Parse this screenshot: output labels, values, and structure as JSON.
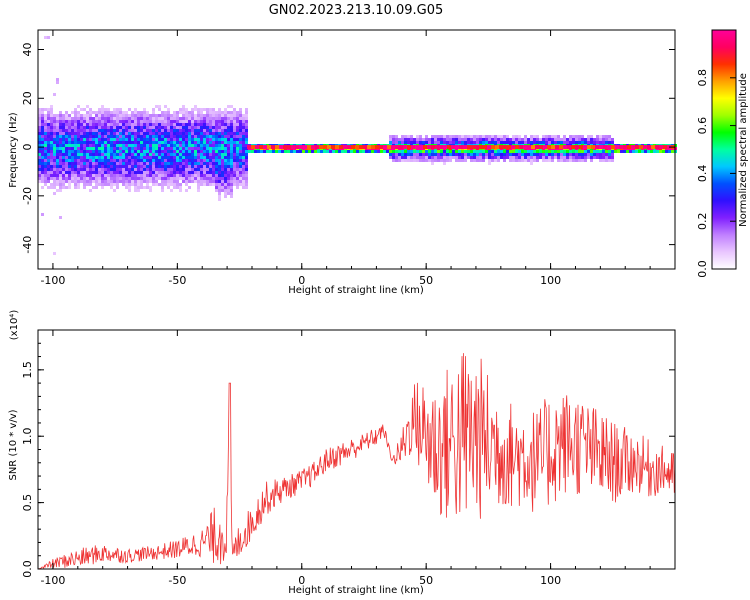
{
  "chart_data": [
    {
      "type": "heatmap",
      "title": "GN02.2023.213.10.09.G05",
      "xlabel": "Height of straight line (km)",
      "ylabel": "Frequency (Hz)",
      "xlim": [
        -106,
        150
      ],
      "ylim": [
        -50,
        48
      ],
      "xticks": [
        -100,
        -50,
        0,
        50,
        100
      ],
      "yticks": [
        -40,
        -20,
        0,
        20,
        40
      ],
      "colorbar": {
        "label": "Normalized spectral amplitude",
        "range": [
          0,
          1
        ],
        "ticks": [
          0.0,
          0.2,
          0.4,
          0.6,
          0.8
        ],
        "tick_labels": [
          "0.0",
          "0.2",
          "0.4",
          "0.6",
          "0.8"
        ],
        "colors": [
          "#ffffff",
          "#e9c6ff",
          "#c080ff",
          "#8020ff",
          "#3010ff",
          "#0050ff",
          "#00c8ff",
          "#00ffa0",
          "#00ff00",
          "#a0ff00",
          "#ffff00",
          "#ffa000",
          "#ff3000",
          "#ff0060",
          "#ff0099"
        ]
      },
      "series": [
        {
          "segments": [
            {
              "x": [
                -106,
                -22
              ],
              "center": 0,
              "spread": 9,
              "amplitude": 0.35
            },
            {
              "x": [
                -36,
                -28
              ],
              "center": -6,
              "spread": 8,
              "amplitude": 0.3
            },
            {
              "x": [
                -22,
                150
              ],
              "center": 0,
              "spread": 1,
              "amplitude": 0.9
            },
            {
              "x": [
                35,
                125
              ],
              "center": 0,
              "spread": 3,
              "amplitude": 0.4
            }
          ]
        }
      ]
    },
    {
      "type": "line",
      "xlabel": "Height of straight line (km)",
      "ylabel": "SNR (10 * v/v)",
      "yscale_label": "(x10⁴)",
      "xlim": [
        -106,
        150
      ],
      "ylim": [
        0,
        1.8
      ],
      "xticks": [
        -100,
        -50,
        0,
        50,
        100
      ],
      "yticks": [
        0.0,
        0.5,
        1.0,
        1.5
      ],
      "ytick_labels": [
        "0.0",
        "0.5",
        "1.0",
        "1.5"
      ],
      "color": "#ee3333",
      "series": [
        {
          "x": [
            -106,
            -100,
            -90,
            -80,
            -70,
            -60,
            -50,
            -40,
            -35,
            -30,
            -29,
            -28,
            -25,
            -20,
            -15,
            -10,
            -5,
            0,
            5,
            10,
            15,
            20,
            25,
            30,
            33,
            35,
            37,
            40,
            43,
            45,
            50,
            55,
            60,
            65,
            70,
            75,
            80,
            85,
            90,
            95,
            100,
            105,
            110,
            115,
            120,
            125,
            130,
            135,
            140,
            145,
            150
          ],
          "y": [
            0.0,
            0.04,
            0.08,
            0.12,
            0.1,
            0.12,
            0.15,
            0.2,
            0.25,
            0.3,
            1.4,
            0.1,
            0.22,
            0.35,
            0.52,
            0.58,
            0.62,
            0.66,
            0.72,
            0.82,
            0.86,
            0.9,
            0.95,
            1.0,
            1.05,
            0.9,
            0.82,
            0.9,
            1.05,
            1.15,
            1.0,
            0.9,
            0.95,
            1.0,
            1.0,
            0.95,
            0.9,
            0.85,
            0.85,
            0.8,
            0.9,
            0.95,
            0.95,
            0.9,
            0.85,
            0.8,
            0.8,
            0.8,
            0.75,
            0.75,
            0.7
          ],
          "band": [
            0.0,
            0.04,
            0.08,
            0.08,
            0.06,
            0.06,
            0.08,
            0.12,
            0.25,
            0.3,
            0.0,
            0.1,
            0.15,
            0.15,
            0.15,
            0.12,
            0.1,
            0.1,
            0.1,
            0.1,
            0.1,
            0.1,
            0.08,
            0.08,
            0.05,
            0.05,
            0.05,
            0.15,
            0.25,
            0.3,
            0.5,
            0.6,
            0.7,
            0.8,
            0.75,
            0.6,
            0.5,
            0.45,
            0.45,
            0.45,
            0.5,
            0.45,
            0.45,
            0.4,
            0.4,
            0.35,
            0.3,
            0.25,
            0.25,
            0.2,
            0.2
          ]
        }
      ]
    }
  ]
}
